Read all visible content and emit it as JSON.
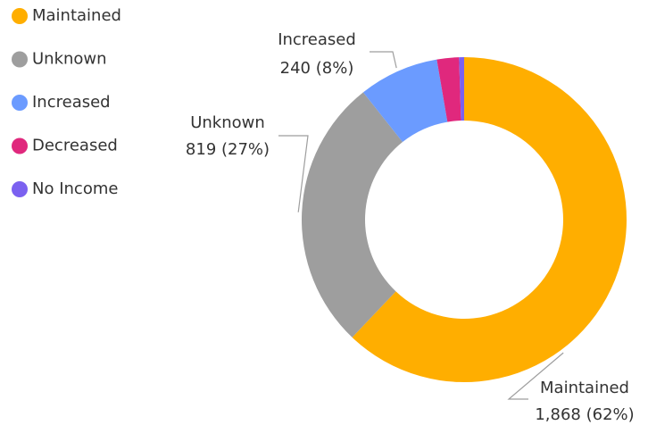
{
  "chart_data": {
    "type": "donut",
    "categories": [
      "Maintained",
      "Unknown",
      "Increased",
      "Decreased",
      "No Income"
    ],
    "values": [
      1868,
      819,
      240,
      66,
      15
    ],
    "value_labels": [
      "1,868 (62%)",
      "819 (27%)",
      "240 (8%)",
      null,
      null
    ],
    "colors": [
      "#ffae00",
      "#9e9e9e",
      "#6b9bff",
      "#e0287d",
      "#7b61f0"
    ],
    "legend": "top-left"
  }
}
